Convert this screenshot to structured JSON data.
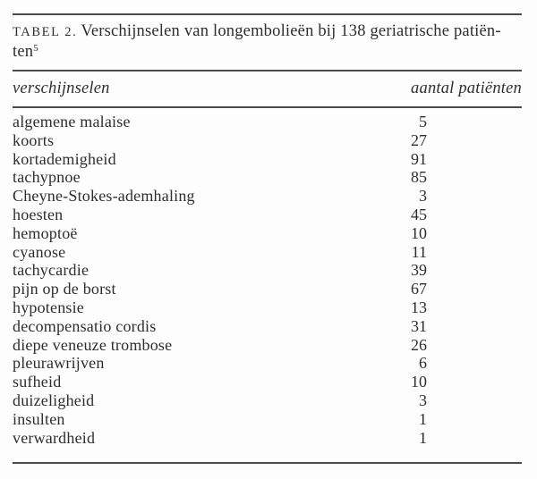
{
  "caption": {
    "label": "TABEL 2.",
    "line1": "Verschijnselen van longembolieën bij 138 geriatrische patiën-",
    "line2": "ten",
    "footnote_ref": "5"
  },
  "table": {
    "columns": {
      "name": "verschijnselen",
      "value": "aantal patiënten"
    },
    "rows": [
      {
        "name": "algemene malaise",
        "value": "5"
      },
      {
        "name": "koorts",
        "value": "27"
      },
      {
        "name": "kortademigheid",
        "value": "91"
      },
      {
        "name": "tachypnoe",
        "value": "85"
      },
      {
        "name": "Cheyne-Stokes-ademhaling",
        "value": "3"
      },
      {
        "name": "hoesten",
        "value": "45"
      },
      {
        "name": "hemoptoë",
        "value": "10"
      },
      {
        "name": "cyanose",
        "value": "11"
      },
      {
        "name": "tachycardie",
        "value": "39"
      },
      {
        "name": "pijn op de borst",
        "value": "67"
      },
      {
        "name": "hypotensie",
        "value": "13"
      },
      {
        "name": "decompensatio cordis",
        "value": "31"
      },
      {
        "name": "diepe veneuze trombose",
        "value": "26"
      },
      {
        "name": "pleurawrijven",
        "value": "6"
      },
      {
        "name": "sufheid",
        "value": "10"
      },
      {
        "name": "duizeligheid",
        "value": "3"
      },
      {
        "name": "insulten",
        "value": "1"
      },
      {
        "name": "verwardheid",
        "value": "1"
      }
    ]
  },
  "colors": {
    "background": "#fdfdfd",
    "text": "#2e2e2e",
    "rule": "#4a4a4a"
  },
  "chart_data": {
    "type": "table",
    "title": "TABEL 2. Verschijnselen van longembolieën bij 138 geriatrische patiënten (ref. 5)",
    "columns": [
      "verschijnselen",
      "aantal patiënten"
    ],
    "categories": [
      "algemene malaise",
      "koorts",
      "kortademigheid",
      "tachypnoe",
      "Cheyne-Stokes-ademhaling",
      "hoesten",
      "hemoptoë",
      "cyanose",
      "tachycardie",
      "pijn op de borst",
      "hypotensie",
      "decompensatio cordis",
      "diepe veneuze trombose",
      "pleurawrijven",
      "sufheid",
      "duizeligheid",
      "insulten",
      "verwardheid"
    ],
    "values": [
      5,
      27,
      91,
      85,
      3,
      45,
      10,
      11,
      39,
      67,
      13,
      31,
      26,
      6,
      10,
      3,
      1,
      1
    ]
  }
}
